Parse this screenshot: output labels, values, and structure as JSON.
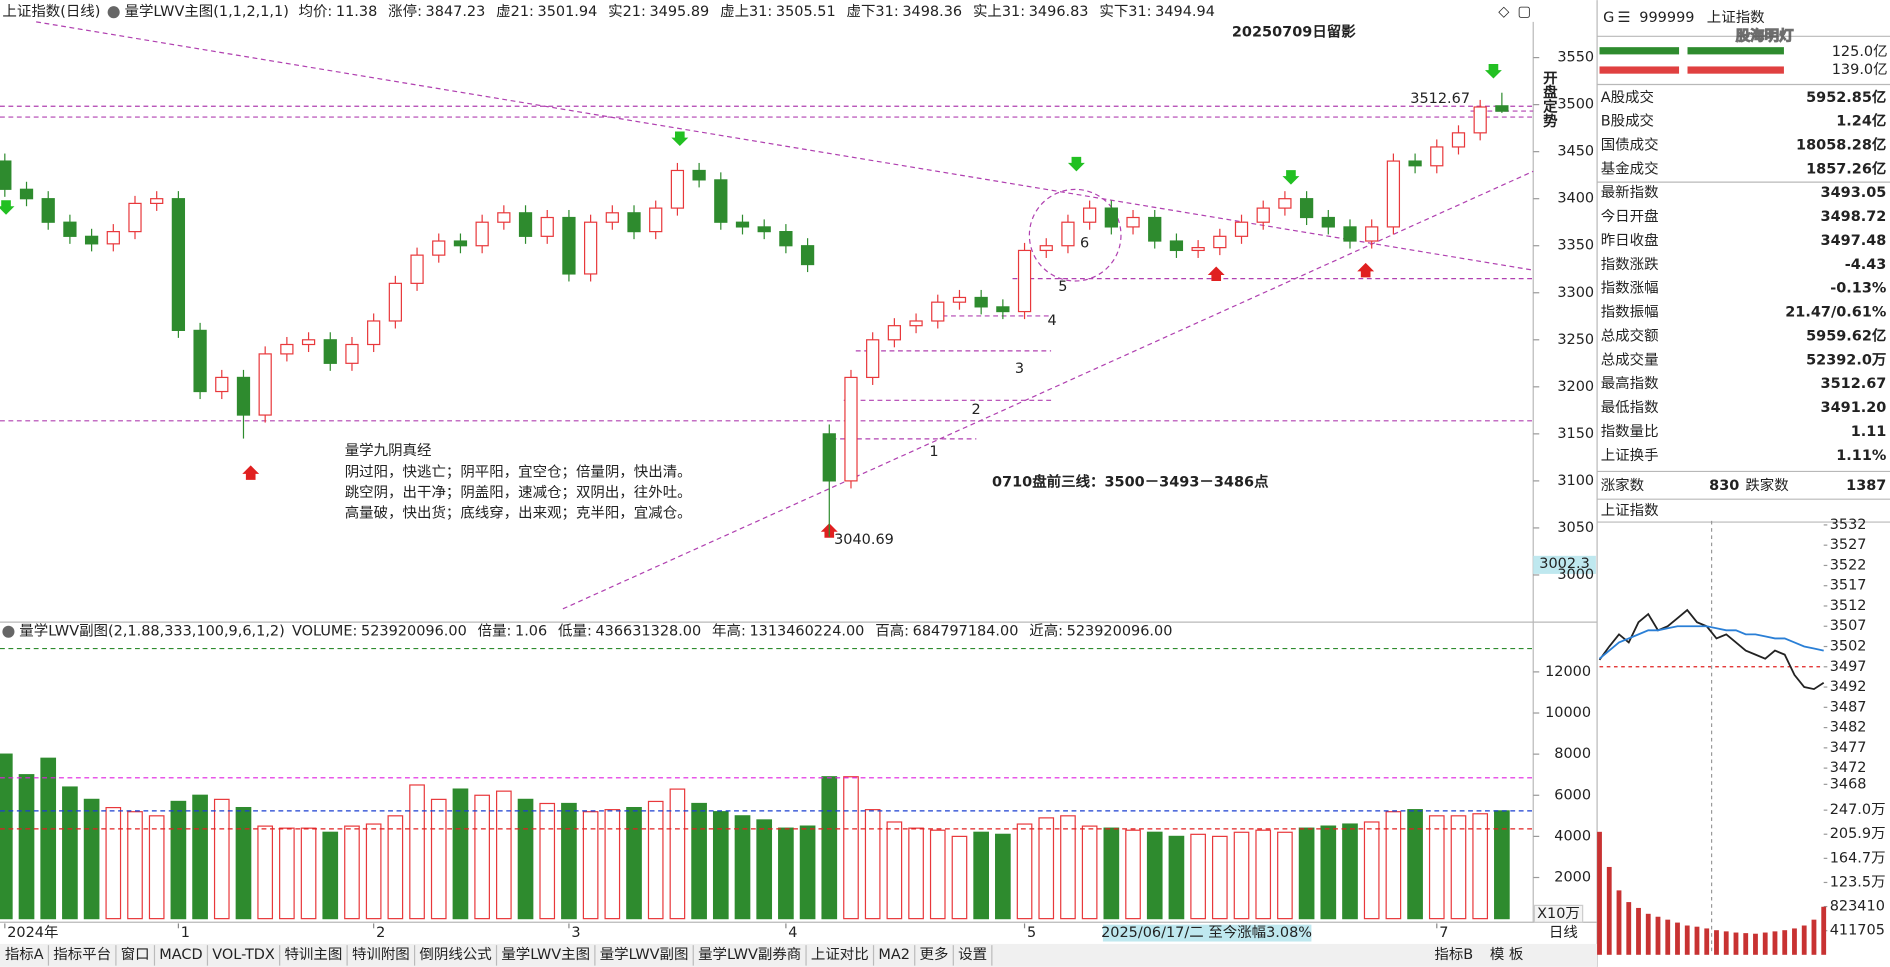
{
  "chart_data": [
    {
      "type": "candlestick",
      "title": "上证指数(日线)",
      "subtitle": "量学LWV主图(1,1,2,1,1)",
      "indicators": [
        {
          "label": "均价:",
          "value": 11.38,
          "color": "#333333"
        },
        {
          "label": "涨停:",
          "value": 3847.23,
          "color": "#e02020"
        },
        {
          "label": "虚21:",
          "value": 3501.94,
          "color": "#1a3fd0"
        },
        {
          "label": "实21:",
          "value": 3495.89,
          "color": "#e02020"
        },
        {
          "label": "虚上31:",
          "value": 3505.51,
          "color": "#e020e0"
        },
        {
          "label": "虚下31:",
          "value": 3498.36,
          "color": "#1a3fd0"
        },
        {
          "label": "实上31:",
          "value": 3496.83,
          "color": "#e02020"
        },
        {
          "label": "实下31:",
          "value": 3494.94,
          "color": "#c020c0"
        }
      ],
      "categories": [
        "2024年",
        null,
        null,
        null,
        null,
        null,
        null,
        null,
        "1",
        null,
        null,
        null,
        null,
        null,
        null,
        null,
        null,
        "2",
        null,
        null,
        null,
        null,
        null,
        null,
        null,
        null,
        "3",
        null,
        null,
        null,
        null,
        null,
        null,
        null,
        null,
        null,
        "4",
        null,
        null,
        null,
        null,
        null,
        null,
        null,
        null,
        null,
        null,
        "5",
        null,
        null,
        null,
        null,
        null,
        null,
        null,
        null,
        null,
        null,
        null,
        null,
        null,
        null,
        null,
        null,
        null,
        null,
        "7",
        null,
        null,
        null
      ],
      "open": [
        3440,
        3410,
        3400,
        3375,
        3360,
        3352,
        3365,
        3395,
        3400,
        3260,
        3195,
        3210,
        3170,
        3235,
        3245,
        3250,
        3225,
        3245,
        3270,
        3310,
        3340,
        3355,
        3350,
        3375,
        3385,
        3360,
        3380,
        3320,
        3375,
        3385,
        3365,
        3390,
        3430,
        3420,
        3375,
        3370,
        3365,
        3350,
        3150,
        3100,
        3210,
        3250,
        3265,
        3270,
        3290,
        3295,
        3285,
        3280,
        3345,
        3350,
        3375,
        3390,
        3370,
        3380,
        3355,
        3345,
        3348,
        3360,
        3375,
        3390,
        3400,
        3380,
        3370,
        3355,
        3370,
        3440,
        3435,
        3455,
        3470,
        3498.72
      ],
      "high": [
        3448,
        3418,
        3408,
        3383,
        3368,
        3373,
        3403,
        3408,
        3408,
        3268,
        3218,
        3218,
        3243,
        3253,
        3258,
        3258,
        3253,
        3278,
        3318,
        3348,
        3363,
        3363,
        3383,
        3393,
        3393,
        3388,
        3388,
        3383,
        3393,
        3393,
        3398,
        3438,
        3438,
        3428,
        3383,
        3378,
        3373,
        3358,
        3160,
        3218,
        3258,
        3273,
        3278,
        3298,
        3303,
        3303,
        3293,
        3353,
        3358,
        3383,
        3398,
        3398,
        3388,
        3388,
        3363,
        3356,
        3368,
        3383,
        3398,
        3408,
        3408,
        3388,
        3378,
        3378,
        3448,
        3448,
        3463,
        3478,
        3505,
        3512.67
      ],
      "low": [
        3402,
        3392,
        3367,
        3352,
        3344,
        3344,
        3357,
        3387,
        3252,
        3187,
        3187,
        3145,
        3162,
        3227,
        3237,
        3217,
        3217,
        3237,
        3262,
        3302,
        3332,
        3342,
        3342,
        3367,
        3352,
        3352,
        3312,
        3312,
        3367,
        3357,
        3357,
        3382,
        3412,
        3367,
        3362,
        3357,
        3342,
        3322,
        3040.69,
        3092,
        3202,
        3242,
        3257,
        3262,
        3282,
        3277,
        3272,
        3272,
        3337,
        3342,
        3367,
        3362,
        3362,
        3347,
        3337,
        3337,
        3340,
        3352,
        3367,
        3382,
        3372,
        3362,
        3347,
        3347,
        3362,
        3427,
        3427,
        3447,
        3462,
        3491.2
      ],
      "close": [
        3410,
        3400,
        3375,
        3360,
        3352,
        3365,
        3395,
        3400,
        3260,
        3195,
        3210,
        3170,
        3235,
        3245,
        3250,
        3225,
        3245,
        3270,
        3310,
        3340,
        3355,
        3350,
        3375,
        3385,
        3360,
        3380,
        3320,
        3375,
        3385,
        3365,
        3390,
        3430,
        3420,
        3375,
        3370,
        3365,
        3350,
        3330,
        3100,
        3210,
        3250,
        3265,
        3270,
        3290,
        3295,
        3285,
        3280,
        3345,
        3350,
        3375,
        3390,
        3370,
        3380,
        3355,
        3345,
        3348,
        3360,
        3375,
        3390,
        3400,
        3380,
        3370,
        3355,
        3370,
        3440,
        3435,
        3455,
        3470,
        3497.48,
        3493.05
      ],
      "up_color": "#e8383b",
      "down_color": "#2e8b2e",
      "ylim": [
        2955,
        3588
      ],
      "yticks": [
        3000,
        3050,
        3100,
        3150,
        3200,
        3250,
        3300,
        3350,
        3400,
        3450,
        3500,
        3550
      ],
      "cursor_label": "3002.3",
      "annotations": {
        "title": "20250709日留影",
        "side_note": "开盘定势",
        "plan": "0710盘前三线：3500－3493－3486点",
        "verse_title": "量学九阴真经",
        "verse": [
          "阴过阳，快逃亡；阴平阳，宜空仓；倍量阴，快出清。",
          "跳空阴，出干净；阴盖阳，速减仓；双阴出，往外吐。",
          "高量破，快出货；底线穿，出来观；克半阳，宜减仓。"
        ],
        "level_marks": [
          "1",
          "2",
          "3",
          "4",
          "5",
          "6"
        ]
      },
      "range_note": "2025/06/17/二 至今涨幅3.08%",
      "period_label": "日线"
    },
    {
      "type": "bar",
      "title": "量学LWV副图(2,1.88,333,100,9,6,1,2)",
      "indicators": [
        {
          "label": "VOLUME:",
          "value": 523920096,
          "value_label": "523920096.00",
          "color": "#333333"
        },
        {
          "label": "倍量:",
          "value": 1.06,
          "color": "#e02020"
        },
        {
          "label": "低量:",
          "value": 436631328,
          "value_label": "436631328.00",
          "color": "#e02020",
          "line": true
        },
        {
          "label": "年高:",
          "value": 1313460224,
          "value_label": "1313460224.00",
          "color": "#2e8b2e",
          "line": true
        },
        {
          "label": "百高:",
          "value": 684797184,
          "value_label": "684797184.00",
          "color": "#e020e0",
          "line": true
        },
        {
          "label": "近高:",
          "value": 523920096,
          "value_label": "523920096.00",
          "color": "#1a3fd0",
          "line": true
        }
      ],
      "values": [
        800000000,
        700000000,
        780000000,
        640000000,
        580000000,
        540000000,
        520000000,
        500000000,
        570000000,
        600000000,
        580000000,
        540000000,
        450000000,
        440000000,
        440000000,
        420000000,
        450000000,
        460000000,
        500000000,
        650000000,
        580000000,
        630000000,
        600000000,
        620000000,
        580000000,
        560000000,
        560000000,
        520000000,
        530000000,
        540000000,
        570000000,
        630000000,
        560000000,
        520000000,
        500000000,
        480000000,
        440000000,
        450000000,
        690000000,
        690000000,
        530000000,
        470000000,
        440000000,
        430000000,
        400000000,
        420000000,
        410000000,
        460000000,
        490000000,
        500000000,
        450000000,
        440000000,
        430000000,
        420000000,
        400000000,
        410000000,
        400000000,
        420000000,
        430000000,
        420000000,
        440000000,
        450000000,
        460000000,
        470000000,
        520000000,
        530000000,
        500000000,
        500000000,
        510000000,
        523920096
      ],
      "ylim": [
        0,
        1360000000
      ],
      "yticks": [
        {
          "value": 200000000,
          "label": "2000"
        },
        {
          "value": 400000000,
          "label": "4000"
        },
        {
          "value": 600000000,
          "label": "6000"
        },
        {
          "value": 800000000,
          "label": "8000"
        },
        {
          "value": 1000000000,
          "label": "10000"
        },
        {
          "value": 1200000000,
          "label": "12000"
        }
      ],
      "unit_label": "X10万"
    },
    {
      "type": "line",
      "title": "上证指数",
      "series": [
        {
          "color": "#222222",
          "values": [
            3498.7,
            3502,
            3505,
            3503,
            3508,
            3510,
            3506,
            3507,
            3509,
            3511,
            3508,
            3507,
            3504,
            3505,
            3503,
            3501,
            3500,
            3499,
            3501,
            3500,
            3495,
            3492,
            3491.5,
            3493.05
          ]
        },
        {
          "color": "#2a7fd6",
          "values": [
            3499,
            3501,
            3503,
            3504,
            3505,
            3506,
            3506,
            3506.5,
            3507,
            3507,
            3507,
            3507,
            3506.5,
            3506,
            3506,
            3505,
            3505,
            3504.5,
            3504,
            3504,
            3503,
            3502,
            3501.5,
            3501
          ]
        },
        {
          "axis": "y2",
          "color": "#c83232",
          "values": [
            2100000,
            1500000,
            1100000,
            900000,
            800000,
            700000,
            650000,
            600000,
            550000,
            500000,
            480000,
            450000,
            420000,
            400000,
            380000,
            370000,
            360000,
            380000,
            400000,
            420000,
            450000,
            500000,
            600000,
            820000
          ]
        }
      ],
      "ylim": [
        3465.2,
        3533
      ],
      "yticks": [
        3532,
        3527,
        3522,
        3517,
        3512,
        3507,
        3502,
        3497,
        3492,
        3487,
        3482,
        3477,
        3472,
        3468
      ],
      "baseline": 3497,
      "y2lim": [
        0,
        2470000
      ],
      "y2ticks": [
        {
          "value": 2470000,
          "label": "247.0万"
        },
        {
          "value": 2059000,
          "label": "205.9万"
        },
        {
          "value": 1647000,
          "label": "164.7万"
        },
        {
          "value": 1235000,
          "label": "123.5万"
        },
        823410,
        411705
      ]
    }
  ],
  "side_panel": {
    "code_prefix": "G",
    "code": "999999",
    "name": "上证指数",
    "watermark": "股海明灯",
    "bars": [
      "125.0亿",
      "139.0亿"
    ],
    "rows": [
      {
        "label": "A股成交",
        "value": "5952.85亿",
        "color": "#222222"
      },
      {
        "label": "B股成交",
        "value": "1.24亿",
        "color": "#222222"
      },
      {
        "label": "国债成交",
        "value": "18058.28亿",
        "color": "#222222"
      },
      {
        "label": "基金成交",
        "value": "1857.26亿",
        "color": "#222222"
      },
      {
        "label": "最新指数",
        "value": "3493.05",
        "color": "#2e8b2e"
      },
      {
        "label": "今日开盘",
        "value": "3498.72",
        "color": "#e02020"
      },
      {
        "label": "昨日收盘",
        "value": "3497.48",
        "color": "#222222"
      },
      {
        "label": "指数涨跌",
        "value": "-4.43",
        "color": "#2e8b2e"
      },
      {
        "label": "指数涨幅",
        "value": "-0.13%",
        "color": "#2e8b2e"
      },
      {
        "label": "指数振幅",
        "value": "21.47/0.61%",
        "color": "#222222"
      },
      {
        "label": "总成交额",
        "value": "5959.62亿",
        "color": "#222222"
      },
      {
        "label": "总成交量",
        "value": "52392.0万",
        "color": "#222222"
      },
      {
        "label": "最高指数",
        "value": "3512.67",
        "color": "#e02020"
      },
      {
        "label": "最低指数",
        "value": "3491.20",
        "color": "#2e8b2e"
      },
      {
        "label": "指数量比",
        "value": "1.11",
        "color": "#e02020"
      },
      {
        "label": "上证换手",
        "value": "1.11%",
        "color": "#222222"
      }
    ],
    "advance_label": "涨家数",
    "advance": 830,
    "decline_label": "跌家数",
    "decline": 1387
  },
  "tabs": [
    "指标A",
    "指标平台",
    "窗口",
    "MACD",
    "VOL-TDX",
    "特训主图",
    "特训附图",
    "倒阴线公式",
    "量学LWV主图",
    "量学LWV副图",
    "量学LWV副券商",
    "上证对比",
    "MA2",
    "更多",
    "设置"
  ],
  "active_tab": "量学LWV副图",
  "tabs_right": [
    "指标B",
    "模 板"
  ]
}
